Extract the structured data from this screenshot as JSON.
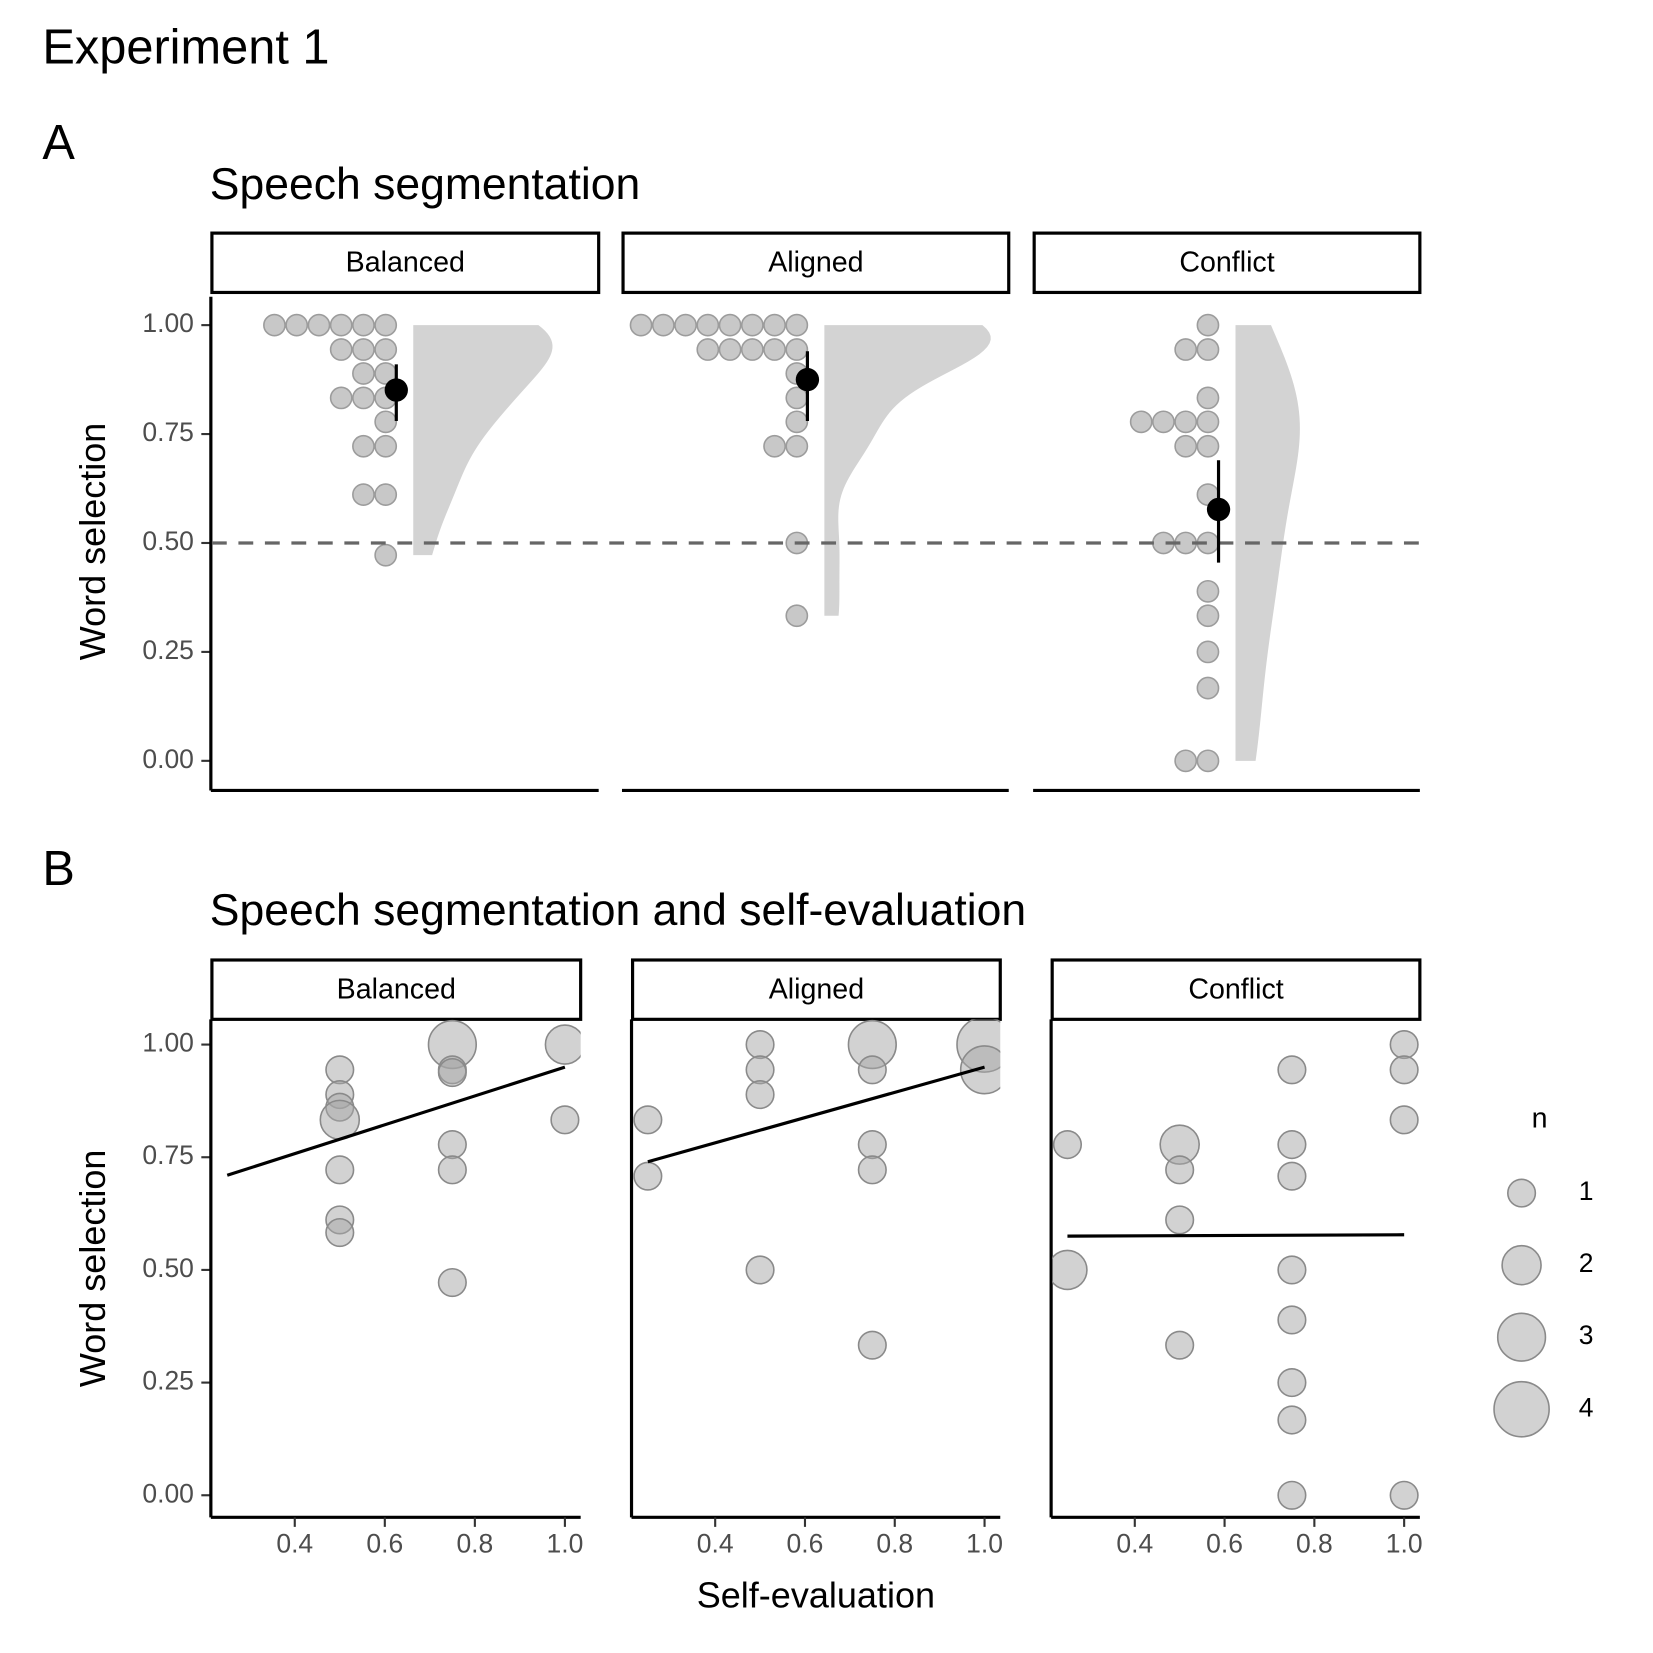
{
  "title": "Experiment 1",
  "chart_data": [
    {
      "type": "raincloud",
      "panel_label": "A",
      "title": "Speech segmentation",
      "ylabel": "Word selection",
      "ylim": [
        -0.068,
        1.075
      ],
      "yticks": [
        {
          "value": 0,
          "label": "0.00"
        },
        {
          "value": 0.25,
          "label": "0.25"
        },
        {
          "value": 0.5,
          "label": "0.50"
        },
        {
          "value": 0.75,
          "label": "0.75"
        },
        {
          "value": 1,
          "label": "1.00"
        }
      ],
      "reference_line": 0.5,
      "dot_color": "#c8c8c8",
      "density_color": "#d3d3d3",
      "mean_color": "#000000",
      "facets": [
        {
          "name": "Balanced",
          "values": [
            1,
            1,
            1,
            1,
            1,
            1,
            0.944,
            0.944,
            0.944,
            0.889,
            0.889,
            0.833,
            0.833,
            0.833,
            0.778,
            0.722,
            0.722,
            0.611,
            0.611,
            0.472
          ],
          "mean": 0.851,
          "ci": [
            0.78,
            0.91
          ]
        },
        {
          "name": "Aligned",
          "values": [
            1,
            1,
            1,
            1,
            1,
            1,
            1,
            1,
            0.944,
            0.944,
            0.944,
            0.944,
            0.944,
            0.889,
            0.833,
            0.778,
            0.722,
            0.722,
            0.5,
            0.333
          ],
          "mean": 0.875,
          "ci": [
            0.78,
            0.94
          ]
        },
        {
          "name": "Conflict",
          "values": [
            1,
            0.944,
            0.944,
            0.833,
            0.778,
            0.778,
            0.778,
            0.778,
            0.722,
            0.722,
            0.611,
            0.5,
            0.5,
            0.5,
            0.389,
            0.333,
            0.25,
            0.167,
            0,
            0
          ],
          "mean": 0.577,
          "ci": [
            0.455,
            0.69
          ]
        }
      ]
    },
    {
      "type": "bubble",
      "panel_label": "B",
      "title": "Speech segmentation and self-evaluation",
      "xlabel": "Self-evaluation",
      "ylabel": "Word selection",
      "xlim": [
        0.216,
        1.035
      ],
      "xticks": [
        0.4,
        0.6,
        0.8,
        {
          "value": 1,
          "label": "1.0"
        }
      ],
      "ylim": [
        -0.049,
        1.056
      ],
      "yticks": [
        {
          "value": 0,
          "label": "0.00"
        },
        {
          "value": 0.25,
          "label": "0.25"
        },
        {
          "value": 0.5,
          "label": "0.50"
        },
        {
          "value": 0.75,
          "label": "0.75"
        },
        {
          "value": 1,
          "label": "1.00"
        }
      ],
      "point_color": "#a6a6a6",
      "line_color": "#000000",
      "facets": [
        {
          "name": "Balanced",
          "x": [
            0.5,
            0.5,
            0.5,
            0.5,
            0.5,
            0.5,
            0.5,
            0.75,
            0.75,
            0.75,
            0.75,
            0.75,
            0.75,
            1,
            1
          ],
          "y": [
            0.944,
            0.889,
            0.861,
            0.833,
            0.722,
            0.611,
            0.583,
            1,
            0.944,
            0.938,
            0.778,
            0.722,
            0.472,
            1,
            0.833
          ],
          "n": [
            1,
            1,
            1,
            2,
            1,
            1,
            1,
            3,
            1,
            1,
            1,
            1,
            1,
            2,
            1
          ],
          "fit": {
            "x": [
              0.25,
              1
            ],
            "y": [
              0.71,
              0.95
            ]
          }
        },
        {
          "name": "Aligned",
          "x": [
            0.25,
            0.25,
            0.5,
            0.5,
            0.5,
            0.5,
            0.75,
            0.75,
            0.75,
            0.75,
            0.75,
            1,
            1
          ],
          "y": [
            0.833,
            0.708,
            1,
            0.944,
            0.889,
            0.5,
            1,
            0.944,
            0.778,
            0.722,
            0.333,
            1,
            0.944
          ],
          "n": [
            1,
            1,
            1,
            1,
            1,
            1,
            3,
            1,
            1,
            1,
            1,
            4,
            3
          ],
          "fit": {
            "x": [
              0.25,
              1
            ],
            "y": [
              0.74,
              0.95
            ]
          }
        },
        {
          "name": "Conflict",
          "x": [
            0.25,
            0.25,
            0.5,
            0.5,
            0.5,
            0.5,
            0.75,
            0.75,
            0.75,
            0.75,
            0.75,
            0.75,
            0.75,
            0.75,
            1,
            1,
            1,
            1
          ],
          "y": [
            0.778,
            0.5,
            0.778,
            0.722,
            0.611,
            0.333,
            0.944,
            0.778,
            0.708,
            0.5,
            0.389,
            0.25,
            0.167,
            0,
            1,
            0.944,
            0.833,
            0
          ],
          "n": [
            1,
            2,
            2,
            1,
            1,
            1,
            1,
            1,
            1,
            1,
            1,
            1,
            1,
            1,
            1,
            1,
            1,
            1
          ],
          "fit": {
            "x": [
              0.25,
              1
            ],
            "y": [
              0.575,
              0.578
            ]
          }
        }
      ],
      "size_legend": {
        "title": "n",
        "values": [
          1,
          2,
          3,
          4
        ]
      }
    }
  ]
}
